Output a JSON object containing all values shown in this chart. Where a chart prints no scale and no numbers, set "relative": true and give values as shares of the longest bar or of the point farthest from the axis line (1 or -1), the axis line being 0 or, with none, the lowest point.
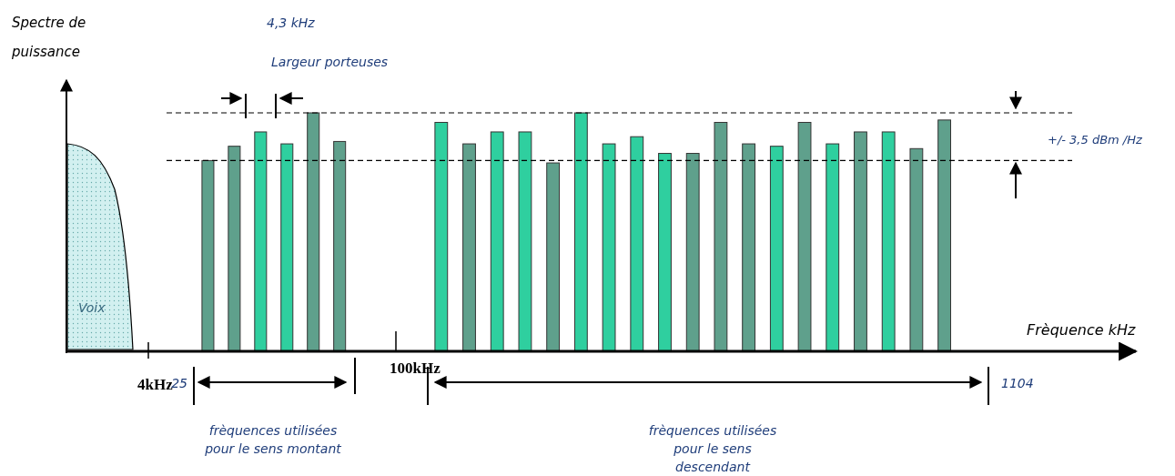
{
  "chart_data": [
    {
      "type": "bar",
      "relative": true,
      "categories": [
        null,
        null,
        null,
        null,
        null,
        null
      ],
      "series": [
        {
          "values": [
            0.8,
            0.86,
            0.92,
            0.87,
            1,
            0.88
          ],
          "colors": [
            "#5fa08c",
            "#5fa08c",
            "#2fcf9f",
            "#2fcf9f",
            "#5fa08c",
            "#5fa08c"
          ]
        }
      ],
      "annotations": [
        "Spectre de puissance",
        "Voix",
        "4,3 kHz",
        "Largeur porteuses",
        "4kHz",
        "25",
        "frèquences utilisées pour le sens montant"
      ]
    },
    {
      "type": "bar",
      "relative": true,
      "xlabel": "Frèquence kHz",
      "ref_lines": [
        {
          "axis": "y",
          "value": 1,
          "color": "#000000",
          "line_style": "dashed"
        },
        {
          "axis": "y",
          "value": 0.8,
          "color": "#000000",
          "line_style": "dashed"
        }
      ],
      "categories": [
        null,
        null,
        null,
        null,
        null,
        null,
        null,
        null,
        null,
        null,
        null,
        null,
        null,
        null,
        null,
        null,
        null,
        null,
        null
      ],
      "series": [
        {
          "values": [
            0.96,
            0.87,
            0.92,
            0.92,
            0.79,
            1,
            0.87,
            0.9,
            0.83,
            0.83,
            0.96,
            0.87,
            0.86,
            0.96,
            0.87,
            0.92,
            0.92,
            0.85,
            0.97
          ],
          "colors": [
            "#2fcf9f",
            "#5fa08c",
            "#2fcf9f",
            "#2fcf9f",
            "#5fa08c",
            "#2fcf9f",
            "#2fcf9f",
            "#2fcf9f",
            "#2fcf9f",
            "#5fa08c",
            "#5fa08c",
            "#5fa08c",
            "#2fcf9f",
            "#5fa08c",
            "#2fcf9f",
            "#5fa08c",
            "#2fcf9f",
            "#5fa08c",
            "#5fa08c"
          ]
        }
      ],
      "annotations": [
        "+/- 3,5 dBm /Hz",
        "100kHz",
        "1104",
        "frèquences utilisées pour le sens descendant"
      ]
    }
  ]
}
